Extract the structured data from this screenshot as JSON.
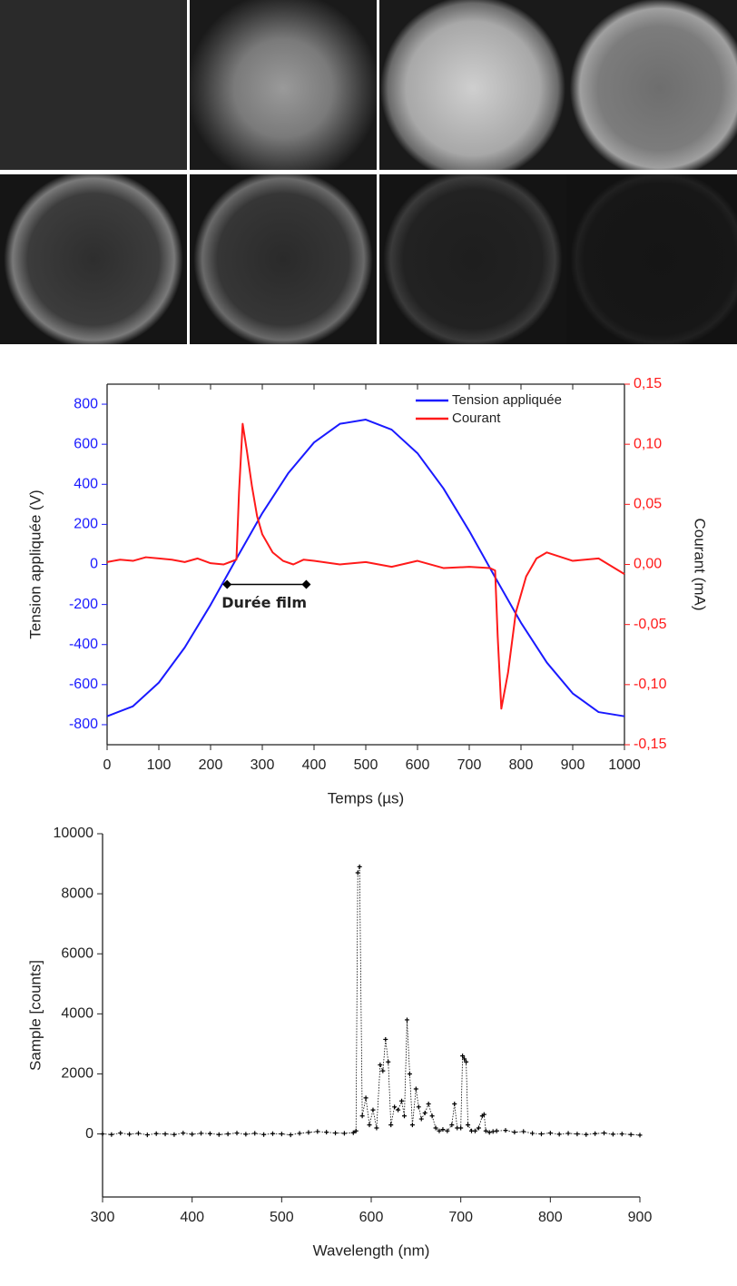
{
  "chart_data": [
    {
      "type": "line",
      "xlabel": "Temps (µs)",
      "ylabel": "Tension appliquée (V)",
      "y2label": "Courant (mA)",
      "xlim": [
        0,
        1000
      ],
      "xticks": [
        0,
        100,
        200,
        300,
        400,
        500,
        600,
        700,
        800,
        900,
        1000
      ],
      "ylim": [
        -900,
        900
      ],
      "yticks": [
        -800,
        -600,
        -400,
        -200,
        0,
        200,
        400,
        600,
        800
      ],
      "y2lim": [
        -0.15,
        0.15
      ],
      "y2ticks": [
        {
          "value": -0.15,
          "label": "-0,15"
        },
        {
          "value": -0.1,
          "label": "-0,10"
        },
        {
          "value": -0.05,
          "label": "-0,05"
        },
        {
          "value": 0,
          "label": "0,00"
        },
        {
          "value": 0.05,
          "label": "0,05"
        },
        {
          "value": 0.1,
          "label": "0,10"
        },
        {
          "value": 0.15,
          "label": "0,15"
        }
      ],
      "legend": "upper right",
      "annotation": {
        "text": "Durée film",
        "x": [
          232,
          385
        ],
        "y": -100
      },
      "series": [
        {
          "name": "Tension appliquée",
          "color": "#1a1aff",
          "x": [
            0,
            50,
            100,
            150,
            200,
            250,
            300,
            350,
            400,
            450,
            500,
            550,
            600,
            650,
            700,
            750,
            800,
            850,
            900,
            950,
            1000
          ],
          "values": [
            -758,
            -708,
            -590,
            -415,
            -202,
            29,
            256,
            455,
            609,
            702,
            723,
            673,
            555,
            380,
            167,
            -64,
            -291,
            -490,
            -644,
            -737,
            -758
          ]
        },
        {
          "name": "Courant",
          "color": "#ff1a1a",
          "axis": "y2",
          "x": [
            0,
            25,
            50,
            75,
            100,
            125,
            150,
            175,
            200,
            225,
            250,
            255,
            262,
            270,
            280,
            290,
            300,
            320,
            340,
            360,
            380,
            400,
            450,
            500,
            550,
            600,
            650,
            700,
            740,
            750,
            755,
            762,
            775,
            790,
            810,
            830,
            850,
            900,
            950,
            1000
          ],
          "values": [
            0.002,
            0.004,
            0.003,
            0.006,
            0.005,
            0.004,
            0.002,
            0.005,
            0.001,
            0.0,
            0.004,
            0.06,
            0.117,
            0.095,
            0.065,
            0.04,
            0.025,
            0.01,
            0.003,
            0.0,
            0.004,
            0.003,
            0.0,
            0.002,
            -0.002,
            0.003,
            -0.003,
            -0.002,
            -0.003,
            -0.005,
            -0.06,
            -0.12,
            -0.09,
            -0.04,
            -0.01,
            0.005,
            0.01,
            0.003,
            0.005,
            -0.008
          ]
        }
      ]
    },
    {
      "type": "line",
      "xlabel": "Wavelength (nm)",
      "ylabel": "Sample [counts]",
      "xlim": [
        300,
        900
      ],
      "xticks": [
        300,
        400,
        500,
        600,
        700,
        800,
        900
      ],
      "ylim": [
        -2100,
        10000
      ],
      "yticks": [
        0,
        2000,
        4000,
        6000,
        8000,
        10000
      ],
      "marker": "+",
      "series": [
        {
          "color": "#000000",
          "x": [
            300,
            310,
            320,
            330,
            340,
            350,
            360,
            370,
            380,
            390,
            400,
            410,
            420,
            430,
            440,
            450,
            460,
            470,
            480,
            490,
            500,
            510,
            520,
            530,
            540,
            550,
            560,
            570,
            580,
            583,
            585,
            587,
            590,
            594,
            598,
            602,
            606,
            610,
            613,
            616,
            619,
            622,
            626,
            630,
            634,
            637,
            640,
            643,
            646,
            650,
            653,
            656,
            660,
            664,
            668,
            672,
            676,
            680,
            685,
            690,
            693,
            696,
            700,
            702,
            704,
            706,
            708,
            712,
            716,
            720,
            724,
            726,
            728,
            732,
            736,
            740,
            750,
            760,
            770,
            780,
            790,
            800,
            810,
            820,
            830,
            840,
            850,
            860,
            870,
            880,
            890,
            900
          ],
          "values": [
            0,
            -20,
            30,
            -10,
            20,
            -30,
            10,
            0,
            -20,
            30,
            -10,
            20,
            10,
            -20,
            0,
            30,
            -10,
            20,
            -20,
            10,
            0,
            -30,
            20,
            50,
            80,
            60,
            30,
            20,
            40,
            100,
            8700,
            8900,
            600,
            1200,
            300,
            800,
            200,
            2300,
            2100,
            3150,
            2400,
            300,
            900,
            800,
            1100,
            600,
            3800,
            2000,
            300,
            1500,
            900,
            500,
            700,
            1000,
            600,
            200,
            100,
            150,
            100,
            300,
            1000,
            200,
            200,
            2600,
            2500,
            2400,
            300,
            100,
            100,
            200,
            600,
            650,
            100,
            50,
            80,
            100,
            120,
            60,
            80,
            20,
            0,
            30,
            -10,
            20,
            0,
            -20,
            10,
            30,
            -10,
            0,
            -20,
            -40
          ]
        }
      ]
    }
  ]
}
